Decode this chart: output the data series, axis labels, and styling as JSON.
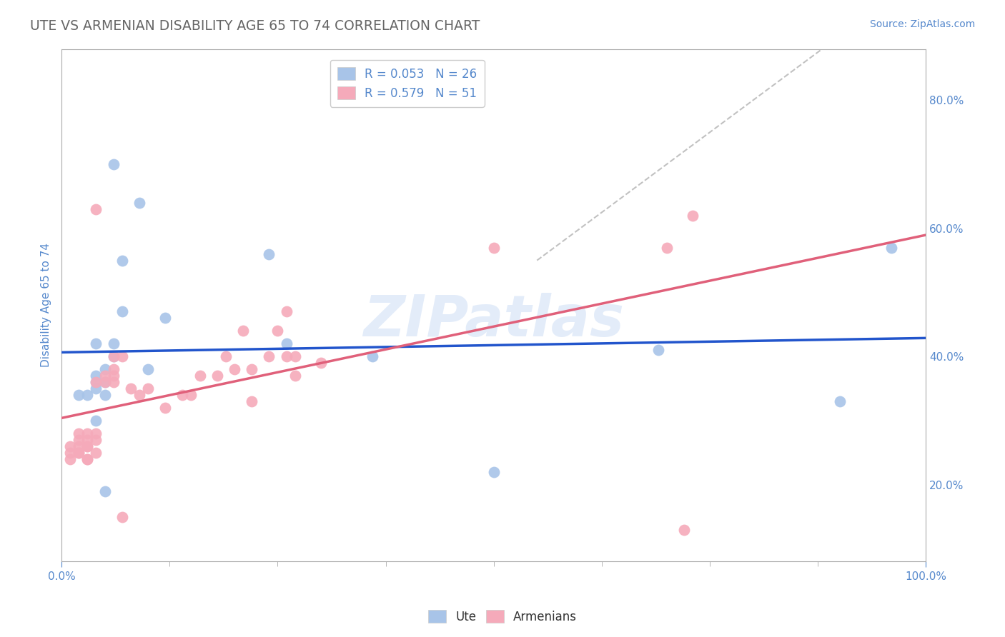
{
  "title": "UTE VS ARMENIAN DISABILITY AGE 65 TO 74 CORRELATION CHART",
  "source_text": "Source: ZipAtlas.com",
  "ylabel": "Disability Age 65 to 74",
  "xlim": [
    0.0,
    1.0
  ],
  "ylim": [
    0.08,
    0.88
  ],
  "ute_R": 0.053,
  "ute_N": 26,
  "armenian_R": 0.579,
  "armenian_N": 51,
  "ute_color": "#a8c4e8",
  "armenian_color": "#f5aaba",
  "ute_line_color": "#2255cc",
  "armenian_line_color": "#e0607a",
  "diag_color": "#bbbbbb",
  "ute_points": [
    [
      0.02,
      0.34
    ],
    [
      0.03,
      0.34
    ],
    [
      0.04,
      0.35
    ],
    [
      0.04,
      0.3
    ],
    [
      0.04,
      0.42
    ],
    [
      0.04,
      0.36
    ],
    [
      0.04,
      0.37
    ],
    [
      0.05,
      0.38
    ],
    [
      0.05,
      0.36
    ],
    [
      0.05,
      0.19
    ],
    [
      0.05,
      0.34
    ],
    [
      0.06,
      0.42
    ],
    [
      0.06,
      0.4
    ],
    [
      0.06,
      0.7
    ],
    [
      0.07,
      0.47
    ],
    [
      0.07,
      0.55
    ],
    [
      0.09,
      0.64
    ],
    [
      0.1,
      0.38
    ],
    [
      0.12,
      0.46
    ],
    [
      0.24,
      0.56
    ],
    [
      0.26,
      0.42
    ],
    [
      0.36,
      0.4
    ],
    [
      0.5,
      0.22
    ],
    [
      0.69,
      0.41
    ],
    [
      0.9,
      0.33
    ],
    [
      0.96,
      0.57
    ]
  ],
  "armenian_points": [
    [
      0.01,
      0.25
    ],
    [
      0.01,
      0.26
    ],
    [
      0.01,
      0.24
    ],
    [
      0.02,
      0.27
    ],
    [
      0.02,
      0.26
    ],
    [
      0.02,
      0.25
    ],
    [
      0.02,
      0.28
    ],
    [
      0.02,
      0.25
    ],
    [
      0.03,
      0.28
    ],
    [
      0.03,
      0.26
    ],
    [
      0.03,
      0.24
    ],
    [
      0.03,
      0.26
    ],
    [
      0.03,
      0.27
    ],
    [
      0.03,
      0.24
    ],
    [
      0.04,
      0.28
    ],
    [
      0.04,
      0.27
    ],
    [
      0.04,
      0.25
    ],
    [
      0.04,
      0.36
    ],
    [
      0.04,
      0.63
    ],
    [
      0.05,
      0.37
    ],
    [
      0.05,
      0.36
    ],
    [
      0.06,
      0.4
    ],
    [
      0.06,
      0.38
    ],
    [
      0.06,
      0.37
    ],
    [
      0.06,
      0.36
    ],
    [
      0.07,
      0.4
    ],
    [
      0.07,
      0.15
    ],
    [
      0.08,
      0.35
    ],
    [
      0.09,
      0.34
    ],
    [
      0.1,
      0.35
    ],
    [
      0.12,
      0.32
    ],
    [
      0.14,
      0.34
    ],
    [
      0.15,
      0.34
    ],
    [
      0.16,
      0.37
    ],
    [
      0.18,
      0.37
    ],
    [
      0.19,
      0.4
    ],
    [
      0.2,
      0.38
    ],
    [
      0.21,
      0.44
    ],
    [
      0.22,
      0.38
    ],
    [
      0.22,
      0.33
    ],
    [
      0.24,
      0.4
    ],
    [
      0.25,
      0.44
    ],
    [
      0.26,
      0.4
    ],
    [
      0.26,
      0.47
    ],
    [
      0.27,
      0.37
    ],
    [
      0.27,
      0.4
    ],
    [
      0.3,
      0.39
    ],
    [
      0.5,
      0.57
    ],
    [
      0.7,
      0.57
    ],
    [
      0.72,
      0.13
    ],
    [
      0.73,
      0.62
    ]
  ],
  "watermark": "ZIPatlas",
  "title_color": "#666666",
  "tick_label_color": "#5588cc",
  "background_color": "#ffffff",
  "grid_color": "#dddddd"
}
